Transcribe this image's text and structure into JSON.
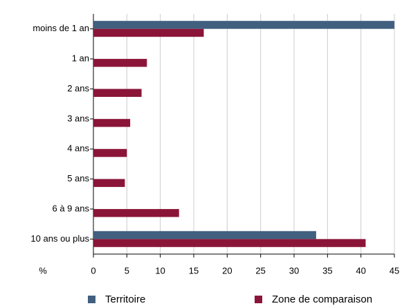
{
  "chart_data": {
    "type": "bar",
    "orientation": "horizontal",
    "x_label": "%",
    "categories": [
      "moins de 1 an",
      "1 an",
      "2 ans",
      "3 ans",
      "4 ans",
      "5 ans",
      "6 à 9 ans",
      "10 ans ou plus"
    ],
    "series": [
      {
        "name": "Territoire",
        "color": "#41607f",
        "values": [
          45,
          0,
          0,
          0,
          0,
          0,
          0,
          33.3
        ]
      },
      {
        "name": "Zone de comparaison",
        "color": "#8b1538",
        "values": [
          16.5,
          8,
          7.2,
          5.5,
          5,
          4.7,
          12.8,
          40.7
        ]
      }
    ],
    "xlim": [
      0,
      45
    ],
    "xticks": [
      0,
      5,
      10,
      15,
      20,
      25,
      30,
      35,
      40,
      45
    ],
    "grid": true
  }
}
